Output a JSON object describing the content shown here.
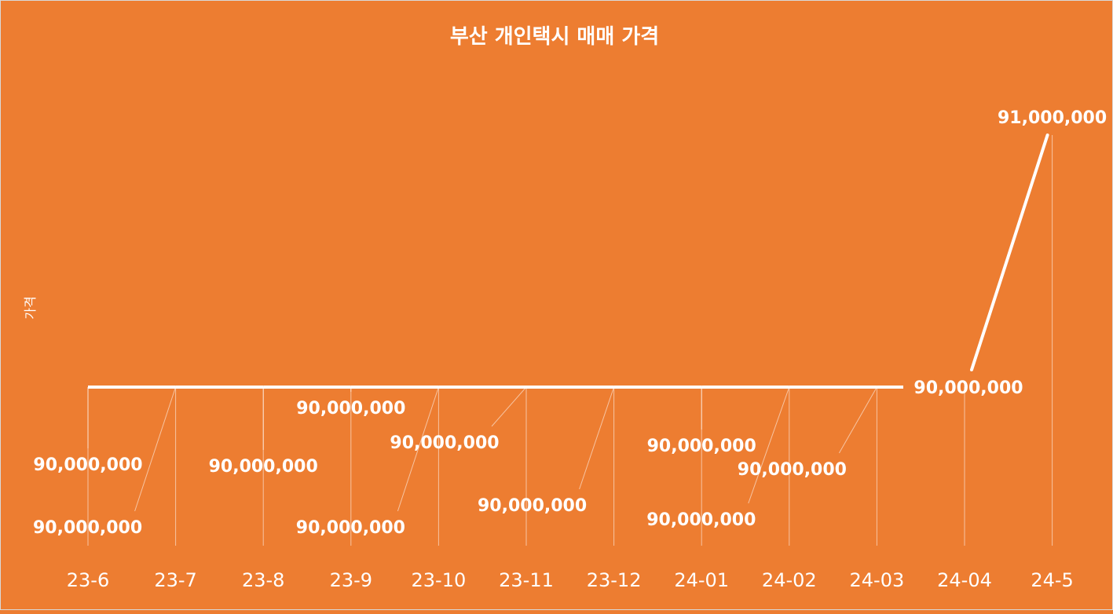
{
  "colors": {
    "background": "#ED7D31",
    "foreground": "#FFFFFF"
  },
  "chart_data": {
    "type": "line",
    "title": "부산 개인택시 매매 가격",
    "xlabel": "",
    "ylabel": "가격",
    "categories": [
      "23-6",
      "23-7",
      "23-8",
      "23-9",
      "23-10",
      "23-11",
      "23-12",
      "24-01",
      "24-02",
      "24-03",
      "24-04",
      "24-5"
    ],
    "values": [
      90000000,
      90000000,
      90000000,
      90000000,
      90000000,
      90000000,
      90000000,
      90000000,
      90000000,
      90000000,
      90000000,
      91000000
    ],
    "data_labels": [
      "90,000,000",
      "90,000,000",
      "90,000,000",
      "90,000,000",
      "90,000,000",
      "90,000,000",
      "90,000,000",
      "90,000,000",
      "90,000,000",
      "90,000,000",
      "90,000,000",
      "91,000,000"
    ],
    "drop_lines": true,
    "grid": false,
    "legend": "none"
  }
}
